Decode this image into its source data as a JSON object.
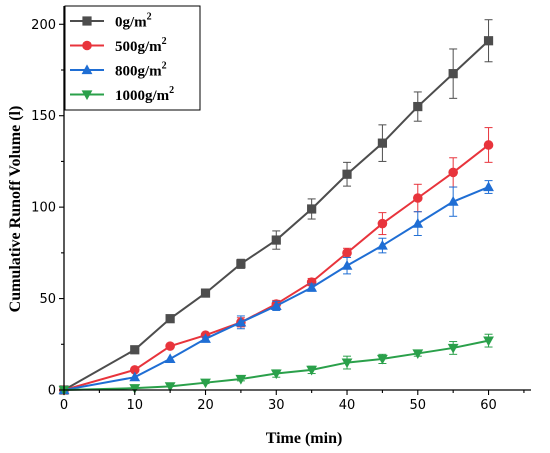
{
  "chart_data": {
    "type": "line",
    "xlabel": "Time (min)",
    "ylabel": "Cumulative Runoff Volume (l)",
    "xlim": [
      0,
      66
    ],
    "ylim": [
      0,
      210
    ],
    "xticks": [
      0,
      10,
      20,
      30,
      40,
      50,
      60
    ],
    "yticks": [
      0,
      50,
      100,
      150,
      200
    ],
    "legend_position": "top-left",
    "grid": false,
    "x": [
      0,
      10,
      15,
      20,
      25,
      30,
      35,
      40,
      45,
      50,
      55,
      60
    ],
    "series": [
      {
        "name": "0g/m",
        "name_sup": "2",
        "marker": "square",
        "color": "#4d4d4d",
        "values": [
          0,
          22,
          39,
          53,
          69,
          82,
          99,
          118,
          135,
          155,
          173,
          191
        ],
        "errors": [
          0,
          0,
          0,
          2,
          2.5,
          5,
          5.5,
          6.5,
          10,
          8,
          13.5,
          11.5
        ]
      },
      {
        "name": "500g/m",
        "name_sup": "2",
        "marker": "circle",
        "color": "#e8343c",
        "values": [
          0,
          11,
          24,
          30,
          37,
          47,
          59,
          75,
          91,
          105,
          119,
          134
        ],
        "errors": [
          0,
          0,
          0,
          1,
          2.5,
          2,
          2,
          2.5,
          6,
          7.5,
          8,
          9.5
        ]
      },
      {
        "name": "800g/m",
        "name_sup": "2",
        "marker": "triangle-up",
        "color": "#1f6ed4",
        "values": [
          0,
          7,
          17,
          28,
          37,
          46,
          56,
          68,
          79,
          91,
          103,
          111
        ],
        "errors": [
          0,
          0,
          0,
          1,
          3.5,
          2.5,
          2,
          4.5,
          4,
          6.5,
          8,
          3.5
        ]
      },
      {
        "name": "1000g/m",
        "name_sup": "2",
        "marker": "triangle-down",
        "color": "#2aa04a",
        "values": [
          0,
          1,
          2,
          4,
          6,
          9,
          11,
          15,
          17,
          20,
          23,
          27
        ],
        "errors": [
          0,
          0,
          0,
          0.5,
          1,
          2,
          2,
          3.5,
          2.5,
          1.5,
          3.5,
          3.5
        ]
      }
    ]
  }
}
